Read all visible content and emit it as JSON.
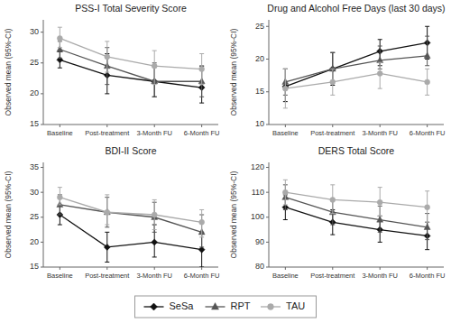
{
  "chart_data": [
    {
      "type": "line",
      "title": "PSS-I Total Severity Score",
      "y_label": "Observed mean (95%-CI)",
      "categories": [
        "Baseline",
        "Post-treatment",
        "3-Month FU",
        "6-Month FU"
      ],
      "ylim": [
        15,
        32
      ],
      "yticks": [
        15,
        20,
        25,
        30
      ],
      "legend": "bottom",
      "series": [
        {
          "name": "SeSa",
          "color": "#111111",
          "marker": "diamond",
          "values": [
            25.5,
            23.0,
            22.0,
            21.0
          ],
          "ci_lo": [
            24.2,
            20.0,
            19.5,
            18.5
          ],
          "ci_hi": [
            26.8,
            26.5,
            24.5,
            24.5
          ]
        },
        {
          "name": "RPT",
          "color": "#555555",
          "marker": "triangle",
          "values": [
            27.2,
            24.5,
            22.0,
            22.0
          ],
          "ci_lo": [
            25.8,
            21.5,
            19.5,
            19.5
          ],
          "ci_hi": [
            28.5,
            27.5,
            25.0,
            24.5
          ]
        },
        {
          "name": "TAU",
          "color": "#aaaaaa",
          "marker": "circle",
          "values": [
            29.0,
            26.0,
            24.5,
            24.0
          ],
          "ci_lo": [
            27.5,
            23.5,
            21.5,
            21.5
          ],
          "ci_hi": [
            30.8,
            28.5,
            27.0,
            26.5
          ]
        }
      ]
    },
    {
      "type": "line",
      "title": "Drug and Alcohol Free Days (last 30 days)",
      "y_label": "Observed mean (95%-CI)",
      "categories": [
        "Baseline",
        "Post-treatment",
        "3-Month FU",
        "6-Month FU"
      ],
      "ylim": [
        10,
        26
      ],
      "yticks": [
        10,
        15,
        20,
        25
      ],
      "series": [
        {
          "name": "SeSa",
          "color": "#111111",
          "marker": "diamond",
          "values": [
            15.8,
            18.5,
            21.2,
            22.5
          ],
          "ci_lo": [
            13.5,
            16.0,
            19.0,
            20.0
          ],
          "ci_hi": [
            18.5,
            21.0,
            23.0,
            25.0
          ]
        },
        {
          "name": "RPT",
          "color": "#555555",
          "marker": "triangle",
          "values": [
            16.5,
            18.5,
            19.8,
            20.5
          ],
          "ci_lo": [
            14.5,
            16.5,
            18.5,
            19.0
          ],
          "ci_hi": [
            18.5,
            21.0,
            22.0,
            23.5
          ]
        },
        {
          "name": "TAU",
          "color": "#aaaaaa",
          "marker": "circle",
          "values": [
            15.5,
            16.5,
            17.8,
            16.5
          ],
          "ci_lo": [
            12.5,
            14.5,
            15.5,
            14.5
          ],
          "ci_hi": [
            18.5,
            18.5,
            19.5,
            18.5
          ]
        }
      ]
    },
    {
      "type": "line",
      "title": "BDI-II Score",
      "y_label": "Observed mean (95%-CI)",
      "categories": [
        "Baseline",
        "Post-treatment",
        "3-Month FU",
        "6-Month FU"
      ],
      "ylim": [
        15,
        36
      ],
      "yticks": [
        15,
        20,
        25,
        30,
        35
      ],
      "series": [
        {
          "name": "SeSa",
          "color": "#111111",
          "marker": "diamond",
          "values": [
            25.5,
            19.0,
            20.0,
            18.5
          ],
          "ci_lo": [
            23.5,
            16.0,
            17.0,
            15.0
          ],
          "ci_hi": [
            27.5,
            22.0,
            23.5,
            22.0
          ]
        },
        {
          "name": "RPT",
          "color": "#555555",
          "marker": "triangle",
          "values": [
            27.5,
            26.0,
            25.0,
            22.0
          ],
          "ci_lo": [
            25.5,
            23.0,
            22.0,
            19.0
          ],
          "ci_hi": [
            29.5,
            29.0,
            28.0,
            25.5
          ]
        },
        {
          "name": "TAU",
          "color": "#aaaaaa",
          "marker": "circle",
          "values": [
            29.0,
            26.0,
            25.5,
            24.0
          ],
          "ci_lo": [
            27.5,
            23.5,
            22.5,
            21.0
          ],
          "ci_hi": [
            31.0,
            29.5,
            28.5,
            26.5
          ]
        }
      ]
    },
    {
      "type": "line",
      "title": "DERS Total Score",
      "y_label": "Observed mean (95%-CI)",
      "categories": [
        "Baseline",
        "Post-treatment",
        "3-Month FU",
        "6-Month FU"
      ],
      "ylim": [
        80,
        122
      ],
      "yticks": [
        80,
        90,
        100,
        110,
        120
      ],
      "series": [
        {
          "name": "SeSa",
          "color": "#111111",
          "marker": "diamond",
          "values": [
            104.0,
            98.0,
            95.0,
            92.5
          ],
          "ci_lo": [
            99.0,
            93.0,
            90.0,
            87.0
          ],
          "ci_hi": [
            109.0,
            103.0,
            100.5,
            98.0
          ]
        },
        {
          "name": "RPT",
          "color": "#555555",
          "marker": "triangle",
          "values": [
            108.0,
            102.0,
            99.0,
            96.0
          ],
          "ci_lo": [
            103.0,
            97.0,
            94.0,
            91.0
          ],
          "ci_hi": [
            113.0,
            107.0,
            104.5,
            101.5
          ]
        },
        {
          "name": "TAU",
          "color": "#aaaaaa",
          "marker": "circle",
          "values": [
            110.0,
            107.0,
            106.0,
            104.0
          ],
          "ci_lo": [
            105.0,
            101.5,
            100.5,
            98.0
          ],
          "ci_hi": [
            115.0,
            113.0,
            112.0,
            110.5
          ]
        }
      ]
    }
  ]
}
